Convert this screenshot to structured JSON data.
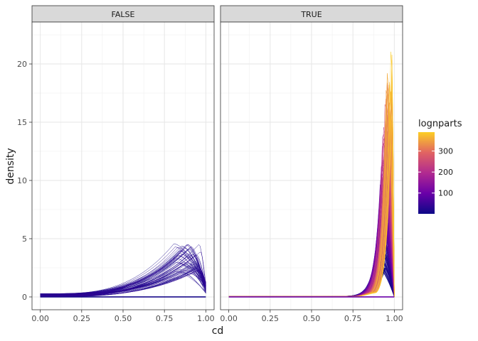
{
  "chart_data": {
    "type": "line",
    "subtype": "faceted density curves",
    "xlabel": "cd",
    "ylabel": "density",
    "xlim": [
      -0.05,
      1.05
    ],
    "ylim": [
      -1.1,
      23.6
    ],
    "x_ticks": [
      0,
      0.25,
      0.5,
      0.75,
      1
    ],
    "x_tick_labels": [
      "0.00",
      "0.25",
      "0.50",
      "0.75",
      "1.00"
    ],
    "y_ticks": [
      0,
      5,
      10,
      15,
      20
    ],
    "y_tick_labels": [
      "0",
      "5",
      "10",
      "15",
      "20"
    ],
    "grid": true,
    "facets": [
      {
        "label": "FALSE",
        "curve_count": 60,
        "density_at_x0_range": [
          0,
          0.3
        ],
        "peak_x_range": [
          0.8,
          0.97
        ],
        "peak_density_range": [
          2.0,
          4.6
        ],
        "density_at_x1_range": [
          0.3,
          1.3
        ],
        "typical_peak": {
          "x": 0.9,
          "density": 3.0
        },
        "lognparts_range": [
          1,
          40
        ]
      },
      {
        "label": "TRUE",
        "curve_count": 280,
        "density_at_x0_range": [
          0,
          0.05
        ],
        "peak_x_range": [
          0.86,
          0.985
        ],
        "peak_density_range": [
          2.5,
          22.4
        ],
        "typical_peak": {
          "x": 0.95,
          "density": 7.0
        },
        "max_peak": {
          "x": 0.98,
          "density": 22.4
        },
        "lognparts_range": [
          1,
          390
        ]
      }
    ],
    "legend": {
      "title": "lognparts",
      "placement": "right",
      "type": "colorbar",
      "range": [
        1,
        390
      ],
      "breaks": [
        100,
        200,
        300
      ],
      "break_labels": [
        "100",
        "200",
        "300"
      ],
      "colors": [
        "#0d0887",
        "#6a00a8",
        "#b12a90",
        "#e16462",
        "#fca636",
        "#f0f921"
      ]
    }
  }
}
